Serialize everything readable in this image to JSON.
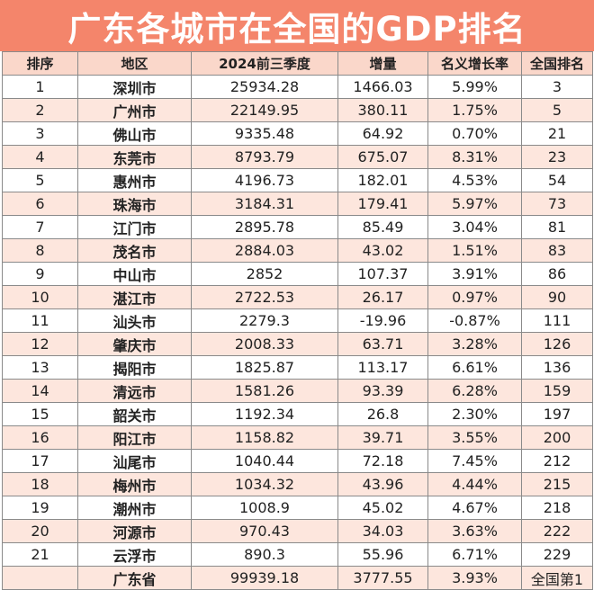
{
  "title": "广东各城市在全国的GDP排名",
  "headers": [
    "排序",
    "地区",
    "2024前三季度",
    "增量",
    "名义增长率",
    "全国排名"
  ],
  "rows": [
    {
      "rank": "1",
      "city": "深圳市",
      "gdp": "25934.28",
      "inc": "1466.03",
      "rate": "5.99%",
      "nat": "3"
    },
    {
      "rank": "2",
      "city": "广州市",
      "gdp": "22149.95",
      "inc": "380.11",
      "rate": "1.75%",
      "nat": "5"
    },
    {
      "rank": "3",
      "city": "佛山市",
      "gdp": "9335.48",
      "inc": "64.92",
      "rate": "0.70%",
      "nat": "21"
    },
    {
      "rank": "4",
      "city": "东莞市",
      "gdp": "8793.79",
      "inc": "675.07",
      "rate": "8.31%",
      "nat": "23"
    },
    {
      "rank": "5",
      "city": "惠州市",
      "gdp": "4196.73",
      "inc": "182.01",
      "rate": "4.53%",
      "nat": "54"
    },
    {
      "rank": "6",
      "city": "珠海市",
      "gdp": "3184.31",
      "inc": "179.41",
      "rate": "5.97%",
      "nat": "73"
    },
    {
      "rank": "7",
      "city": "江门市",
      "gdp": "2895.78",
      "inc": "85.49",
      "rate": "3.04%",
      "nat": "81"
    },
    {
      "rank": "8",
      "city": "茂名市",
      "gdp": "2884.03",
      "inc": "43.02",
      "rate": "1.51%",
      "nat": "83"
    },
    {
      "rank": "9",
      "city": "中山市",
      "gdp": "2852",
      "inc": "107.37",
      "rate": "3.91%",
      "nat": "86"
    },
    {
      "rank": "10",
      "city": "湛江市",
      "gdp": "2722.53",
      "inc": "26.17",
      "rate": "0.97%",
      "nat": "90"
    },
    {
      "rank": "11",
      "city": "汕头市",
      "gdp": "2279.3",
      "inc": "-19.96",
      "rate": "-0.87%",
      "nat": "111"
    },
    {
      "rank": "12",
      "city": "肇庆市",
      "gdp": "2008.33",
      "inc": "63.71",
      "rate": "3.28%",
      "nat": "126"
    },
    {
      "rank": "13",
      "city": "揭阳市",
      "gdp": "1825.87",
      "inc": "113.17",
      "rate": "6.61%",
      "nat": "136"
    },
    {
      "rank": "14",
      "city": "清远市",
      "gdp": "1581.26",
      "inc": "93.39",
      "rate": "6.28%",
      "nat": "159"
    },
    {
      "rank": "15",
      "city": "韶关市",
      "gdp": "1192.34",
      "inc": "26.8",
      "rate": "2.30%",
      "nat": "197"
    },
    {
      "rank": "16",
      "city": "阳江市",
      "gdp": "1158.82",
      "inc": "39.71",
      "rate": "3.55%",
      "nat": "200"
    },
    {
      "rank": "17",
      "city": "汕尾市",
      "gdp": "1040.44",
      "inc": "72.18",
      "rate": "7.45%",
      "nat": "212"
    },
    {
      "rank": "18",
      "city": "梅州市",
      "gdp": "1034.32",
      "inc": "43.96",
      "rate": "4.44%",
      "nat": "215"
    },
    {
      "rank": "19",
      "city": "潮州市",
      "gdp": "1008.9",
      "inc": "45.02",
      "rate": "4.67%",
      "nat": "218"
    },
    {
      "rank": "20",
      "city": "河源市",
      "gdp": "970.43",
      "inc": "34.03",
      "rate": "3.63%",
      "nat": "222"
    },
    {
      "rank": "21",
      "city": "云浮市",
      "gdp": "890.3",
      "inc": "55.96",
      "rate": "6.71%",
      "nat": "229"
    },
    {
      "rank": "",
      "city": "广东省",
      "gdp": "99939.18",
      "inc": "3777.55",
      "rate": "3.93%",
      "nat": "全国第1"
    }
  ]
}
